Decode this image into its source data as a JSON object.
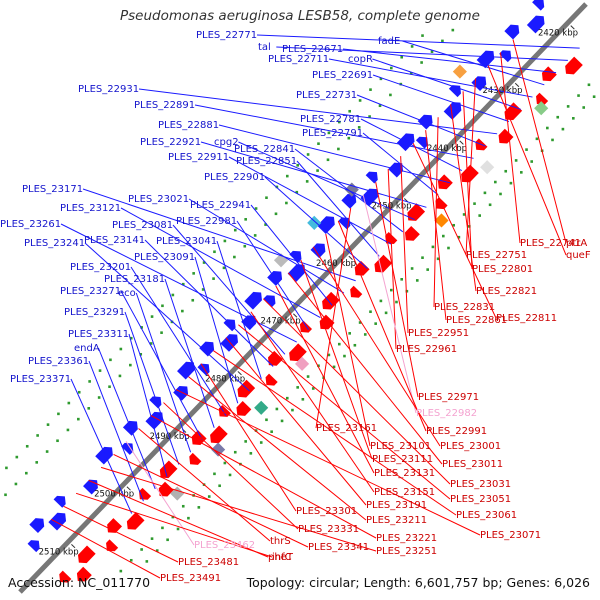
{
  "title": "Pseudomonas aeruginosa LESB58, complete genome",
  "footer": {
    "accession": "Accession: NC_011770",
    "summary": "Topology: circular; Length: 6,601,757 bp; Genes: 6,026"
  },
  "colors": {
    "forward": "#1a1aff",
    "reverse": "#ff0000",
    "reverse_pseudo": "#f4a3d0",
    "backbone": "#777777",
    "dots": "#2e9a2e"
  },
  "ticks": [
    {
      "label": "2420 kbp"
    },
    {
      "label": "2430 kbp"
    },
    {
      "label": "2440 kbp"
    },
    {
      "label": "2450 kbp"
    },
    {
      "label": "2460 kbp"
    },
    {
      "label": "2470 kbp"
    },
    {
      "label": "2480 kbp"
    },
    {
      "label": "2490 kbp"
    },
    {
      "label": "2500 kbp"
    },
    {
      "label": "2510 kbp"
    }
  ],
  "forward_labels": [
    {
      "text": "PLES_22771"
    },
    {
      "text": "tal"
    },
    {
      "text": "PLES_22671"
    },
    {
      "text": "fadE"
    },
    {
      "text": "PLES_22711"
    },
    {
      "text": "copR"
    },
    {
      "text": "PLES_22691"
    },
    {
      "text": "PLES_22931"
    },
    {
      "text": "PLES_22731"
    },
    {
      "text": "PLES_22891"
    },
    {
      "text": "PLES_22781"
    },
    {
      "text": "PLES_22881"
    },
    {
      "text": "PLES_22791"
    },
    {
      "text": "PLES_22921"
    },
    {
      "text": "cpg2"
    },
    {
      "text": "PLES_22841"
    },
    {
      "text": "PLES_22911"
    },
    {
      "text": "PLES_22851"
    },
    {
      "text": "PLES_22901"
    },
    {
      "text": "PLES_23171"
    },
    {
      "text": "PLES_23021"
    },
    {
      "text": "PLES_22941"
    },
    {
      "text": "PLES_23121"
    },
    {
      "text": "PLES_22981"
    },
    {
      "text": "PLES_23261"
    },
    {
      "text": "PLES_23081"
    },
    {
      "text": "PLES_23141"
    },
    {
      "text": "PLES_23041"
    },
    {
      "text": "PLES_23241"
    },
    {
      "text": "PLES_23091"
    },
    {
      "text": "PLES_23201"
    },
    {
      "text": "PLES_23181"
    },
    {
      "text": "PLES_23271"
    },
    {
      "text": "eco"
    },
    {
      "text": "PLES_23291"
    },
    {
      "text": "PLES_23311"
    },
    {
      "text": "endA"
    },
    {
      "text": "PLES_23361"
    },
    {
      "text": "PLES_23371"
    }
  ],
  "reverse_labels": [
    {
      "text": "ptrA",
      "pseudo": false
    },
    {
      "text": "PLES_22741",
      "pseudo": false
    },
    {
      "text": "queF",
      "pseudo": false
    },
    {
      "text": "PLES_22751",
      "pseudo": false
    },
    {
      "text": "PLES_22801",
      "pseudo": false
    },
    {
      "text": "PLES_22821",
      "pseudo": false
    },
    {
      "text": "PLES_22831",
      "pseudo": false
    },
    {
      "text": "PLES_22861",
      "pseudo": false
    },
    {
      "text": "PLES_22811",
      "pseudo": false
    },
    {
      "text": "PLES_22951",
      "pseudo": false
    },
    {
      "text": "PLES_22961",
      "pseudo": false
    },
    {
      "text": "PLES_22971",
      "pseudo": false
    },
    {
      "text": "PLES_22982",
      "pseudo": true
    },
    {
      "text": "PLES_23161",
      "pseudo": false
    },
    {
      "text": "PLES_22991",
      "pseudo": false
    },
    {
      "text": "PLES_23101",
      "pseudo": false
    },
    {
      "text": "PLES_23001",
      "pseudo": false
    },
    {
      "text": "PLES_23111",
      "pseudo": false
    },
    {
      "text": "PLES_23011",
      "pseudo": false
    },
    {
      "text": "PLES_23131",
      "pseudo": false
    },
    {
      "text": "PLES_23031",
      "pseudo": false
    },
    {
      "text": "PLES_23151",
      "pseudo": false
    },
    {
      "text": "PLES_23051",
      "pseudo": false
    },
    {
      "text": "PLES_23191",
      "pseudo": false
    },
    {
      "text": "PLES_23061",
      "pseudo": false
    },
    {
      "text": "PLES_23301",
      "pseudo": false
    },
    {
      "text": "PLES_23211",
      "pseudo": false
    },
    {
      "text": "PLES_23071",
      "pseudo": false
    },
    {
      "text": "PLES_23331",
      "pseudo": false
    },
    {
      "text": "PLES_23221",
      "pseudo": false
    },
    {
      "text": "thrS",
      "pseudo": false
    },
    {
      "text": "PLES_23462",
      "pseudo": true
    },
    {
      "text": "PLES_23341",
      "pseudo": false
    },
    {
      "text": "PLES_23251",
      "pseudo": false
    },
    {
      "text": "pheT",
      "pseudo": false
    },
    {
      "text": "infC",
      "pseudo": false
    },
    {
      "text": "PLES_23481",
      "pseudo": false
    },
    {
      "text": "PLES_23491",
      "pseudo": false
    }
  ]
}
